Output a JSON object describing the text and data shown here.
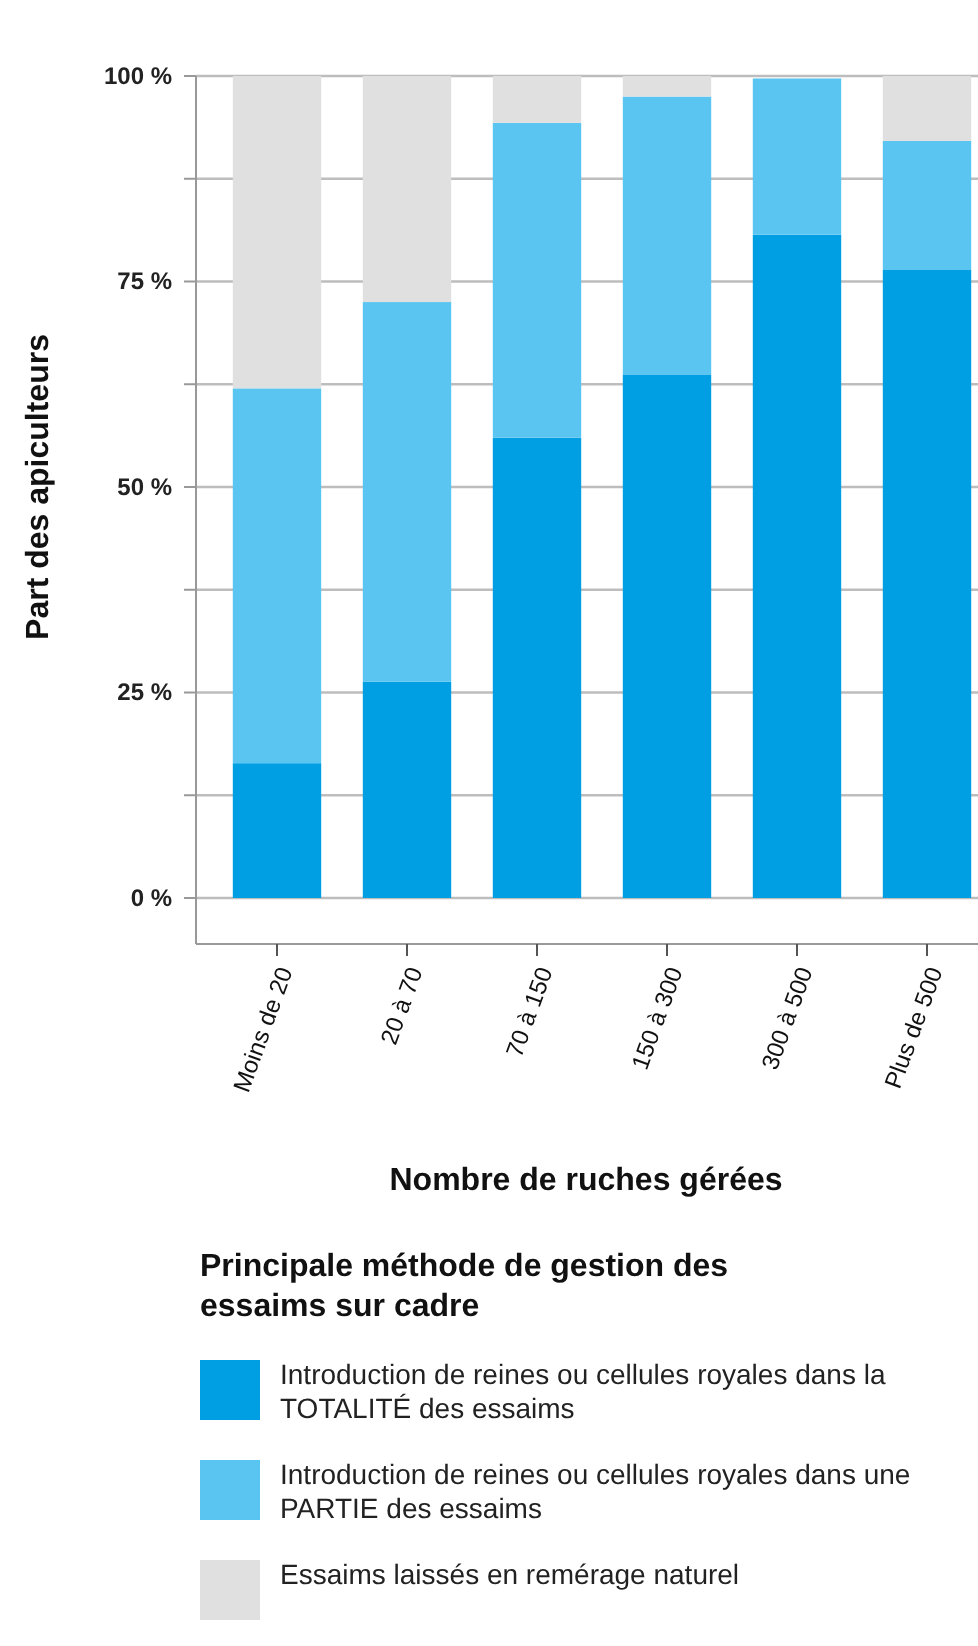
{
  "chart_data": {
    "type": "bar",
    "stacked": true,
    "xlabel": "Nombre de ruches gérées",
    "ylabel": "Part des apiculteurs",
    "legend_title": "Principale méthode de gestion des essaims sur cadre",
    "legend": "bottom",
    "grid": "y",
    "categories": [
      "Moins de 20",
      "20 à 70",
      "70 à 150",
      "150 à 300",
      "300 à 500",
      "Plus de 500"
    ],
    "ylim": [
      0,
      100
    ],
    "yticks": [
      {
        "value": 0,
        "label": "0 %"
      },
      {
        "value": 12.5,
        "label": null
      },
      {
        "value": 25,
        "label": "25 %"
      },
      {
        "value": 37.5,
        "label": null
      },
      {
        "value": 50,
        "label": "50 %"
      },
      {
        "value": 62.5,
        "label": null
      },
      {
        "value": 75,
        "label": "75 %"
      },
      {
        "value": 87.5,
        "label": null
      },
      {
        "value": 100,
        "label": "100 %"
      }
    ],
    "series": [
      {
        "name": "Introduction de reines ou cellules royales dans la TOTALITÉ des essaims",
        "color": "#009fe3",
        "values": [
          16.4,
          26.3,
          56,
          63.7,
          80.7,
          76.4
        ]
      },
      {
        "name": "Introduction de reines ou cellules royales dans une PARTIE des essaims",
        "color": "#5bc5f2",
        "values": [
          45.6,
          46.2,
          38.3,
          33.8,
          19,
          15.7
        ]
      },
      {
        "name": "Essaims laissés en remérage naturel",
        "color": "#e0e0e0",
        "values": [
          38,
          27.5,
          5.7,
          2.5,
          null,
          7.9
        ]
      }
    ]
  }
}
